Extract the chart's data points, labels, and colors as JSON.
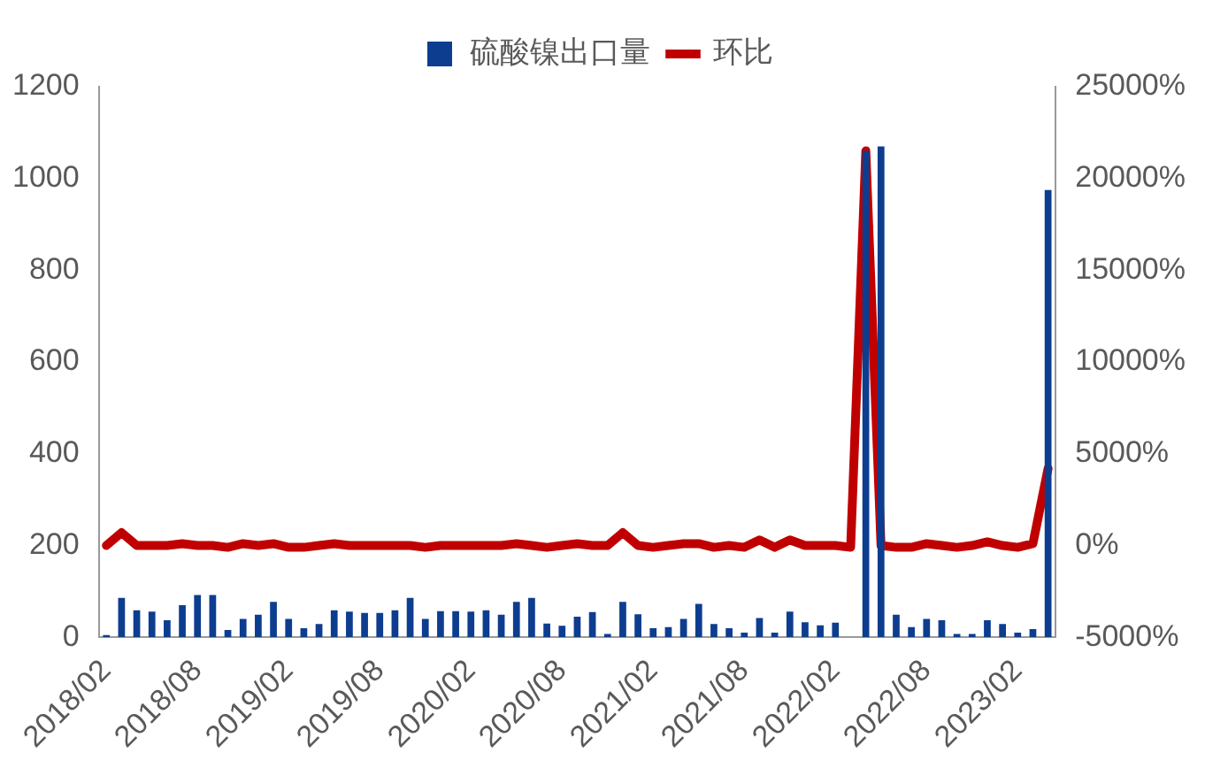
{
  "chart_data": {
    "type": "bar",
    "categories": [
      "2018/02",
      null,
      null,
      null,
      null,
      null,
      "2018/08",
      null,
      null,
      null,
      null,
      null,
      "2019/02",
      null,
      null,
      null,
      null,
      null,
      "2019/08",
      null,
      null,
      null,
      null,
      null,
      "2020/02",
      null,
      null,
      null,
      null,
      null,
      "2020/08",
      null,
      null,
      null,
      null,
      null,
      "2021/02",
      null,
      null,
      null,
      null,
      null,
      "2021/08",
      null,
      null,
      null,
      null,
      null,
      "2022/02",
      null,
      null,
      null,
      null,
      null,
      "2022/08",
      null,
      null,
      null,
      null,
      null,
      "2023/02",
      null,
      null
    ],
    "series": [
      {
        "name": "硫酸镍出口量",
        "color": "#0d3d8f",
        "values": [
          5,
          86,
          59,
          56,
          37,
          70,
          92,
          92,
          16,
          40,
          49,
          77,
          40,
          20,
          29,
          59,
          56,
          53,
          53,
          59,
          86,
          40,
          57,
          57,
          56,
          59,
          49,
          77,
          86,
          30,
          25,
          45,
          55,
          7,
          77,
          50,
          20,
          22,
          40,
          73,
          29,
          20,
          10,
          42,
          10,
          56,
          33,
          26,
          32,
          null,
          1060,
          1070,
          49,
          22,
          40,
          37,
          7,
          7,
          37,
          29,
          10,
          18,
          975
        ]
      },
      {
        "name": "环比",
        "type": "line",
        "axis": "y2",
        "color": "#c00000",
        "values": [
          0,
          700,
          0,
          0,
          0,
          100,
          0,
          0,
          -100,
          100,
          0,
          100,
          -100,
          -100,
          0,
          100,
          0,
          0,
          0,
          0,
          0,
          -100,
          0,
          0,
          0,
          0,
          0,
          100,
          0,
          -100,
          0,
          100,
          0,
          0,
          700,
          0,
          -100,
          0,
          100,
          100,
          -100,
          0,
          -100,
          300,
          -100,
          300,
          0,
          0,
          0,
          -100,
          21500,
          0,
          -100,
          -100,
          100,
          0,
          -100,
          0,
          200,
          0,
          -100,
          100,
          4200
        ]
      }
    ],
    "ylim": [
      0,
      1200
    ],
    "yticks": [
      0,
      200,
      400,
      600,
      800,
      1000,
      1200
    ],
    "y2lim": [
      -5000,
      25000
    ],
    "y2ticks": [
      {
        "value": -5000,
        "label": "-5000%"
      },
      {
        "value": 0,
        "label": "0%"
      },
      {
        "value": 5000,
        "label": "5000%"
      },
      {
        "value": 10000,
        "label": "10000%"
      },
      {
        "value": 15000,
        "label": "15000%"
      },
      {
        "value": 20000,
        "label": "20000%"
      },
      {
        "value": 25000,
        "label": "25000%"
      }
    ],
    "legend": "top"
  }
}
